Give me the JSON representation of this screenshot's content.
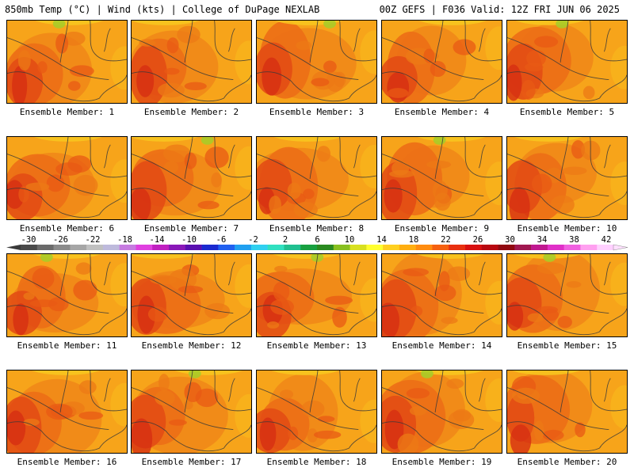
{
  "header": {
    "left": "850mb Temp (°C) | Wind (kts) | College of DuPage NEXLAB",
    "right": "00Z GEFS | F036 Valid: 12Z FRI JUN 06 2025"
  },
  "members": [
    "Ensemble Member: 1",
    "Ensemble Member: 2",
    "Ensemble Member: 3",
    "Ensemble Member: 4",
    "Ensemble Member: 5",
    "Ensemble Member: 6",
    "Ensemble Member: 7",
    "Ensemble Member: 8",
    "Ensemble Member: 9",
    "Ensemble Member: 10",
    "Ensemble Member: 11",
    "Ensemble Member: 12",
    "Ensemble Member: 13",
    "Ensemble Member: 14",
    "Ensemble Member: 15",
    "Ensemble Member: 16",
    "Ensemble Member: 17",
    "Ensemble Member: 18",
    "Ensemble Member: 19",
    "Ensemble Member: 20"
  ],
  "colorbar": {
    "labels": [
      "-30",
      "-26",
      "-22",
      "-18",
      "-14",
      "-10",
      "-6",
      "-2",
      "2",
      "6",
      "10",
      "14",
      "18",
      "22",
      "26",
      "30",
      "34",
      "38",
      "42"
    ],
    "colors": [
      "#4a4a4a",
      "#6a6a6a",
      "#8a8a8a",
      "#a6a6a6",
      "#c0c0c0",
      "#bebadc",
      "#c67be0",
      "#e040e0",
      "#c020c0",
      "#8a18b8",
      "#5a10b0",
      "#1a2ad0",
      "#2060f0",
      "#20a0f0",
      "#30d0f0",
      "#30e0c0",
      "#20c090",
      "#18a040",
      "#2a8a20",
      "#88c020",
      "#d8e020",
      "#ffff30",
      "#ffd020",
      "#ffae10",
      "#ff8c10",
      "#f56010",
      "#e83010",
      "#d81010",
      "#b80810",
      "#900810",
      "#a01850",
      "#c01890",
      "#e030c8",
      "#f060e0",
      "#ffa0f0",
      "#ffd0ff"
    ]
  }
}
